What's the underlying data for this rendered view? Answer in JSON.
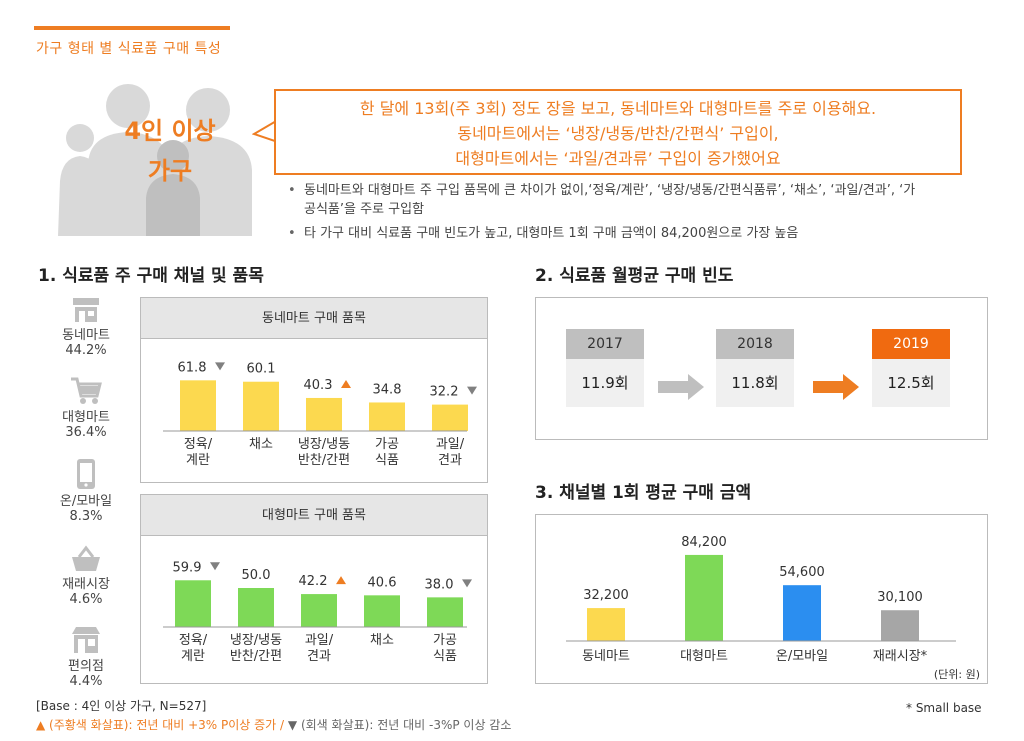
{
  "page": {
    "title": "가구 형태 별 식료품 구매 특성",
    "household_label_line1": "4인 이상",
    "household_label_line2": "가구",
    "headline_lines": [
      "한 달에 13회(주 3회) 정도 장을 보고, 동네마트와 대형마트를 주로 이용해요.",
      "동네마트에서는 ‘냉장/냉동/반찬/간편식’ 구입이,",
      "대형마트에서는 ‘과일/견과류’ 구입이 증가했어요"
    ],
    "bullets": [
      "동네마트와 대형마트 주 구입 품목에 큰 차이가 없이,‘정육/계란’, ‘냉장/냉동/간편식품류’, ‘채소’, ‘과일/견과’, ‘가공식품’을 주로 구입함",
      "타 가구 대비 식료품 구매 빈도가 높고, 대형마트 1회 구매 금액이 84,200원으로 가장 높음"
    ],
    "colors": {
      "accent": "#ee7d22",
      "yellow": "#fcd94f",
      "green": "#7ed957",
      "blue": "#2b8ef0",
      "grey": "#a6a6a6"
    }
  },
  "section1": {
    "title": "1. 식료품 주 구매 채널 및 품목",
    "channels": [
      {
        "name": "동네마트",
        "share": "44.2%",
        "icon": "store-icon"
      },
      {
        "name": "대형마트",
        "share": "36.4%",
        "icon": "cart-icon"
      },
      {
        "name": "온/모바일",
        "share": "8.3%",
        "icon": "phone-icon"
      },
      {
        "name": "재래시장",
        "share": "4.6%",
        "icon": "basket-icon"
      },
      {
        "name": "편의점",
        "share": "4.4%",
        "icon": "shop-icon"
      }
    ]
  },
  "section2": {
    "title": "2. 식료품 월평균 구매 빈도",
    "years": [
      {
        "year": "2017",
        "value": "11.9회"
      },
      {
        "year": "2018",
        "value": "11.8회"
      },
      {
        "year": "2019",
        "value": "12.5회"
      }
    ]
  },
  "section3": {
    "title": "3. 채널별 1회 평균 구매 금액"
  },
  "footer": {
    "base": "[Base : 4인 이상 가구, N=527]",
    "legend_up": "▲ (주황색  화살표): 전년 대비 +3% P이상 증가 /",
    "legend_down": "▼ (회색 화살표): 전년 대비 -3%P 이상 감소",
    "small_base": "* Small base"
  },
  "chart_data": [
    {
      "type": "bar",
      "title": "동네마트 구매 품목",
      "categories": [
        "정육/\n계란",
        "채소",
        "냉장/냉동\n반찬/간편",
        "가공\n식품",
        "과일/\n견과"
      ],
      "values": [
        61.8,
        60.1,
        40.3,
        34.8,
        32.2
      ],
      "labels": [
        "61.8",
        "60.1",
        "40.3",
        "34.8",
        "32.2"
      ],
      "markers": [
        "down",
        "",
        "up",
        "",
        "down"
      ],
      "color": "#fcd94f",
      "ylim": [
        0,
        100
      ]
    },
    {
      "type": "bar",
      "title": "대형마트 구매 품목",
      "categories": [
        "정육/\n계란",
        "냉장/냉동\n반찬/간편",
        "과일/\n견과",
        "채소",
        "가공\n식품"
      ],
      "values": [
        59.9,
        50.0,
        42.2,
        40.6,
        38.0
      ],
      "labels": [
        "59.9",
        "50.0",
        "42.2",
        "40.6",
        "38.0"
      ],
      "markers": [
        "down",
        "",
        "up",
        "",
        "down"
      ],
      "color": "#7ed957",
      "ylim": [
        0,
        100
      ]
    },
    {
      "type": "bar",
      "title": "채널별 1회 평균 구매 금액",
      "categories": [
        "동네마트",
        "대형마트",
        "온/모바일",
        "재래시장*"
      ],
      "values": [
        32200,
        84200,
        54600,
        30100
      ],
      "labels": [
        "32,200",
        "84,200",
        "54,600",
        "30,100"
      ],
      "colors": [
        "#fcd94f",
        "#7ed957",
        "#2b8ef0",
        "#a6a6a6"
      ],
      "unit_note": "(단위: 원)",
      "ylim": [
        0,
        90000
      ]
    }
  ]
}
